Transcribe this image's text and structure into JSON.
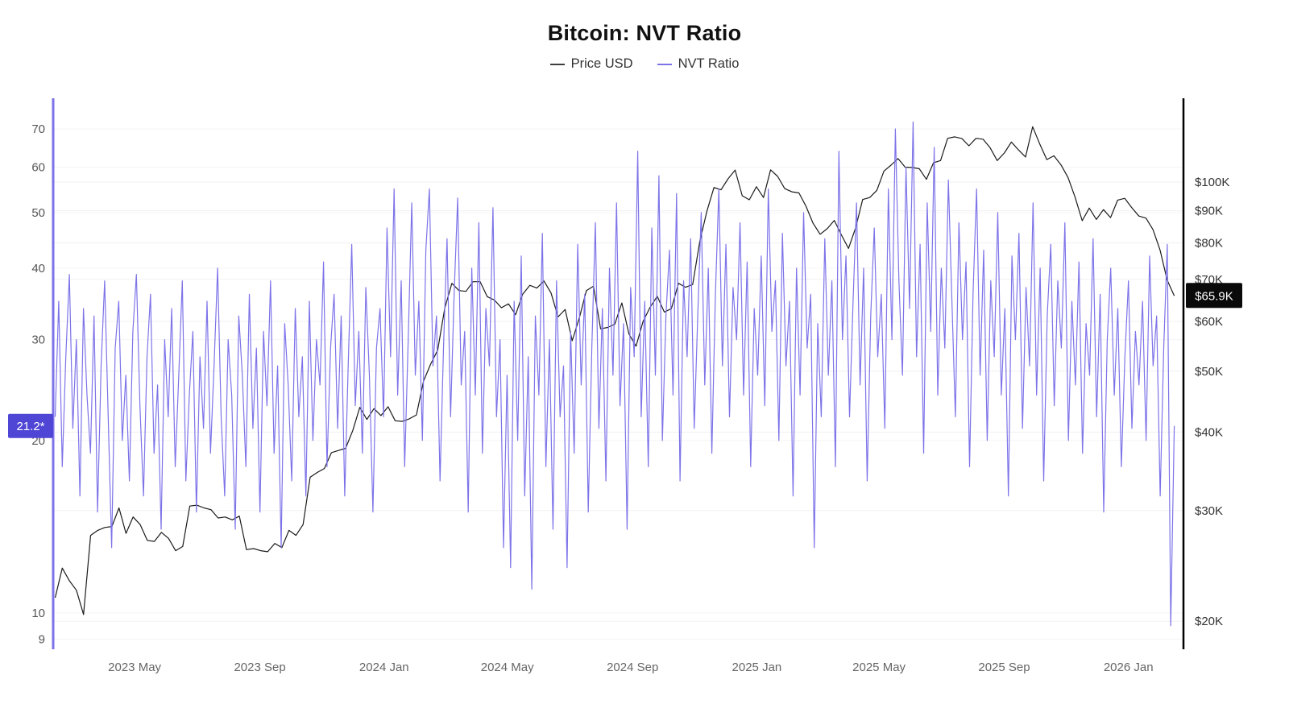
{
  "title": "Bitcoin: NVT Ratio",
  "legend": [
    {
      "label": "Price USD",
      "color": "#3d3d3d"
    },
    {
      "label": "NVT Ratio",
      "color": "#7d73e8"
    }
  ],
  "badges": {
    "left": {
      "label": "21.2*",
      "color": "#4f46d6",
      "text_color": "#ffffff"
    },
    "right": {
      "label": "$65.9K",
      "color": "#0a0a0a",
      "text_color": "#ffffff"
    }
  },
  "chart_data": {
    "type": "line",
    "title": "Bitcoin: NVT Ratio",
    "grid": "light-horizontal",
    "legend_position": "top-center",
    "x_range": [
      "2023-02-10",
      "2026-02-24"
    ],
    "x_ticks": [
      {
        "label": "2023 May",
        "date": "2023-05-01"
      },
      {
        "label": "2023 Sep",
        "date": "2023-09-01"
      },
      {
        "label": "2024 Jan",
        "date": "2024-01-01"
      },
      {
        "label": "2024 May",
        "date": "2024-05-01"
      },
      {
        "label": "2024 Sep",
        "date": "2024-09-01"
      },
      {
        "label": "2025 Jan",
        "date": "2025-01-01"
      },
      {
        "label": "2025 May",
        "date": "2025-05-01"
      },
      {
        "label": "2025 Sep",
        "date": "2025-09-01"
      },
      {
        "label": "2026 Jan",
        "date": "2026-01-01"
      }
    ],
    "left_axis": {
      "title": "NVT Ratio",
      "scale": "log",
      "range": [
        8.6,
        79
      ],
      "ticks": [
        70,
        60,
        50,
        40,
        30,
        20,
        10,
        9
      ],
      "color": "#7d73e8"
    },
    "right_axis": {
      "title": "Price USD",
      "scale": "log",
      "range_usd_k": [
        18,
        136
      ],
      "ticks": [
        {
          "label": "$100K",
          "value_k": 100
        },
        {
          "label": "$90K",
          "value_k": 90
        },
        {
          "label": "$80K",
          "value_k": 80
        },
        {
          "label": "$70K",
          "value_k": 70
        },
        {
          "label": "$60K",
          "value_k": 60
        },
        {
          "label": "$50K",
          "value_k": 50
        },
        {
          "label": "$40K",
          "value_k": 40
        },
        {
          "label": "$30K",
          "value_k": 30
        },
        {
          "label": "$20K",
          "value_k": 20
        }
      ],
      "color": "#000000"
    },
    "last_values": {
      "nvt": 21.2,
      "nvt_label": "21.2*",
      "price_usd_k": 65.9,
      "price_label": "$65.9K"
    },
    "series": [
      {
        "name": "Price USD",
        "axis": "right",
        "color": "#1b1b1b",
        "unit": "USD thousands",
        "start": "2023-02-12",
        "end": "2026-02-15",
        "values": [
          21.8,
          24.3,
          23.2,
          22.4,
          20.5,
          27.4,
          27.9,
          28.2,
          28.3,
          30.3,
          27.6,
          29.3,
          28.5,
          26.9,
          26.8,
          27.7,
          27.1,
          25.9,
          26.3,
          30.5,
          30.6,
          30.3,
          30.1,
          29.2,
          29.3,
          29.0,
          29.4,
          26.0,
          26.1,
          25.9,
          25.8,
          26.6,
          26.2,
          27.9,
          27.4,
          28.5,
          33.9,
          34.5,
          35.0,
          37.1,
          37.4,
          37.7,
          40.2,
          43.8,
          41.9,
          43.6,
          42.5,
          43.9,
          41.7,
          41.6,
          42.0,
          42.6,
          48.2,
          51.3,
          54.0,
          63.0,
          69.0,
          67.2,
          67.0,
          69.4,
          69.4,
          65.7,
          64.9,
          63.1,
          64.0,
          61.5,
          66.3,
          68.5,
          67.8,
          69.6,
          66.6,
          61.0,
          62.7,
          55.9,
          60.8,
          67.2,
          68.3,
          58.4,
          58.7,
          59.4,
          64.2,
          57.3,
          54.8,
          60.0,
          63.2,
          65.8,
          62.1,
          62.9,
          69.0,
          68.0,
          68.7,
          80.4,
          89.8,
          98.0,
          97.2,
          101.2,
          104.5,
          95.1,
          93.7,
          98.3,
          94.5,
          104.6,
          102.1,
          97.6,
          96.5,
          96.1,
          91.5,
          86.0,
          82.6,
          84.3,
          86.9,
          82.4,
          78.4,
          84.5,
          93.8,
          94.5,
          97.0,
          104.1,
          106.4,
          109.0,
          105.6,
          105.5,
          105.0,
          101.0,
          107.3,
          108.2,
          117.4,
          118.0,
          117.3,
          114.2,
          117.4,
          117.0,
          113.4,
          108.2,
          111.2,
          115.8,
          112.5,
          109.6,
          122.5,
          115.0,
          108.6,
          110.1,
          106.5,
          101.7,
          94.6,
          86.8,
          90.9,
          87.2,
          90.4,
          87.8,
          93.6,
          94.2,
          91.0,
          88.3,
          87.6,
          84.0,
          77.9,
          69.8,
          65.9
        ]
      },
      {
        "name": "NVT Ratio",
        "axis": "left",
        "color": "#7d73e8",
        "unit": "ratio",
        "start": "2023-02-12",
        "end": "2026-02-15",
        "values": [
          22,
          35,
          18,
          28,
          39,
          21,
          30,
          16,
          34,
          24,
          19,
          33,
          15,
          27,
          38,
          22,
          13,
          29,
          35,
          20,
          26,
          17,
          31,
          39,
          23,
          16,
          28,
          36,
          19,
          25,
          14,
          30,
          22,
          34,
          18,
          26,
          38,
          17,
          24,
          31,
          15,
          28,
          21,
          35,
          19,
          27,
          40,
          22,
          16,
          30,
          24,
          14,
          33,
          26,
          18,
          36,
          21,
          29,
          15,
          31,
          23,
          38,
          19,
          27,
          13,
          32,
          25,
          17,
          34,
          22,
          28,
          16,
          35,
          20,
          30,
          25,
          41,
          18,
          29,
          36,
          21,
          33,
          16,
          27,
          44,
          23,
          31,
          19,
          37,
          26,
          15,
          29,
          34,
          22,
          47,
          28,
          55,
          24,
          38,
          18,
          30,
          52,
          26,
          35,
          20,
          43,
          55,
          27,
          33,
          17,
          29,
          45,
          22,
          36,
          53,
          25,
          31,
          15,
          40,
          24,
          48,
          19,
          34,
          27,
          51,
          22,
          30,
          13,
          26,
          12,
          35,
          20,
          42,
          16,
          28,
          11,
          33,
          24,
          46,
          18,
          30,
          14,
          38,
          22,
          27,
          12,
          31,
          19,
          44,
          25,
          36,
          15,
          29,
          48,
          21,
          34,
          17,
          40,
          26,
          52,
          23,
          32,
          14,
          37,
          28,
          64,
          22,
          35,
          18,
          47,
          26,
          58,
          20,
          33,
          43,
          24,
          54,
          17,
          38,
          28,
          45,
          21,
          33,
          50,
          25,
          40,
          19,
          36,
          55,
          27,
          44,
          22,
          37,
          30,
          48,
          24,
          41,
          18,
          34,
          26,
          42,
          23,
          55,
          31,
          38,
          20,
          46,
          27,
          35,
          16,
          40,
          24,
          50,
          29,
          36,
          13,
          32,
          22,
          45,
          26,
          38,
          18,
          64,
          30,
          42,
          22,
          35,
          52,
          25,
          40,
          17,
          33,
          47,
          28,
          36,
          21,
          55,
          30,
          70,
          38,
          26,
          60,
          34,
          72,
          28,
          44,
          19,
          52,
          31,
          65,
          24,
          40,
          29,
          57,
          35,
          22,
          48,
          30,
          41,
          18,
          36,
          55,
          26,
          43,
          20,
          38,
          28,
          50,
          24,
          34,
          16,
          42,
          30,
          46,
          21,
          37,
          27,
          52,
          24,
          40,
          17,
          33,
          44,
          23,
          38,
          29,
          48,
          20,
          35,
          25,
          41,
          19,
          32,
          26,
          45,
          22,
          36,
          15,
          30,
          40,
          24,
          34,
          18,
          28,
          38,
          21,
          31,
          25,
          35,
          20,
          42,
          27,
          33,
          16,
          29,
          44,
          9.5,
          21.2
        ]
      }
    ]
  }
}
